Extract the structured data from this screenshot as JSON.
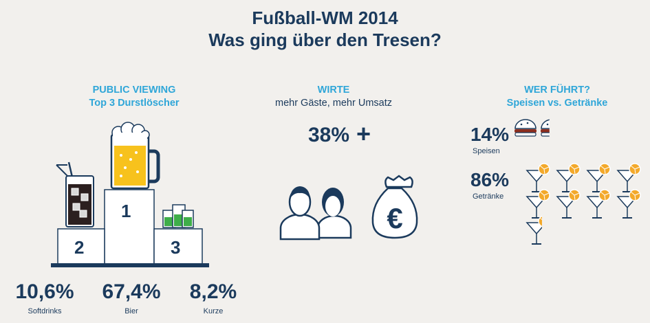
{
  "header": {
    "title_line1": "Fußball-WM 2014",
    "title_line2": "Was ging über den Tresen?"
  },
  "sections": {
    "public_viewing": {
      "title": "PUBLIC VIEWING",
      "subtitle": "Top 3 Durstlöscher"
    },
    "wirte": {
      "title": "WIRTE",
      "subtitle": "mehr Gäste, mehr Umsatz",
      "value_label": "38%",
      "plus": "+"
    },
    "wer_fuehrt": {
      "title": "WER FÜHRT?",
      "subtitle": "Speisen vs. Getränke"
    }
  },
  "podium": {
    "place1": "1",
    "place2": "2",
    "place3": "3"
  },
  "icons": [
    "beer-mug-icon",
    "softdrink-glass-icon",
    "shot-glasses-icon",
    "people-icon",
    "money-bag-icon",
    "burger-icon",
    "cocktail-glass-icon"
  ],
  "colors": {
    "navy": "#1b3a5c",
    "accent_blue": "#2fa6d8",
    "beer_yellow": "#f7c21d",
    "shot_green": "#3fae49",
    "background": "#f2f0ed"
  },
  "chart_data": [
    {
      "type": "bar",
      "title": "PUBLIC VIEWING",
      "subtitle": "Top 3 Durstlöscher",
      "categories": [
        "Softdrinks",
        "Bier",
        "Kurze"
      ],
      "values": [
        10.6,
        67.4,
        8.2
      ],
      "value_labels": [
        "10,6%",
        "67,4%",
        "8,2%"
      ]
    },
    {
      "type": "bar",
      "title": "WER FÜHRT?",
      "subtitle": "Speisen vs. Getränke",
      "categories": [
        "Speisen",
        "Getränke"
      ],
      "values": [
        14,
        86
      ],
      "value_labels": [
        "14%",
        "86%"
      ]
    }
  ]
}
